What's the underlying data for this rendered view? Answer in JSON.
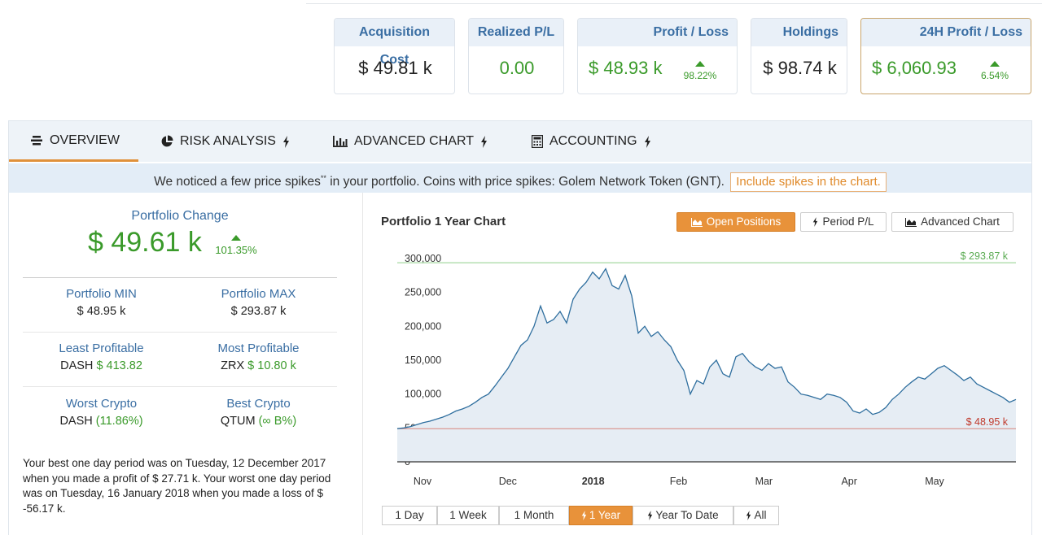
{
  "cards": [
    {
      "title": "Acquisition Cost",
      "value": "$ 49.81 k"
    },
    {
      "title": "Realized P/L",
      "value": "0.00"
    },
    {
      "title": "Profit / Loss",
      "value": "$ 48.93 k",
      "pct": "98.22%"
    },
    {
      "title": "Holdings",
      "value": "$ 98.74 k"
    },
    {
      "title": "24H Profit / Loss",
      "value": "$ 6,060.93",
      "pct": "6.54%"
    }
  ],
  "tabs": [
    {
      "label": "OVERVIEW",
      "icon": "stack-icon"
    },
    {
      "label": "RISK ANALYSIS",
      "icon": "pie-chart-icon"
    },
    {
      "label": "ADVANCED CHART",
      "icon": "bar-chart-icon"
    },
    {
      "label": "ACCOUNTING",
      "icon": "calculator-icon"
    }
  ],
  "notice": {
    "text_before": "We noticed a few price spikes",
    "sup": "**",
    "text_after": " in your portfolio. Coins with price spikes: Golem Network Token (GNT).",
    "button": "Include spikes in the chart."
  },
  "overview": {
    "change_title": "Portfolio Change",
    "change_value": "$ 49.61 k",
    "change_pct": "101.35%",
    "min_label": "Portfolio MIN",
    "min_value": "$ 48.95 k",
    "max_label": "Portfolio MAX",
    "max_value": "$ 293.87 k",
    "least_label": "Least Profitable",
    "least_coin": "DASH",
    "least_value": "$ 413.82",
    "most_label": "Most Profitable",
    "most_coin": "ZRX",
    "most_value": "$ 10.80 k",
    "worst_label": "Worst Crypto",
    "worst_coin": "DASH",
    "worst_value": "(11.86%)",
    "best_label": "Best Crypto",
    "best_coin": "QTUM",
    "best_value": "(∞ B%)",
    "summary": "Your best one day period was on Tuesday, 12 December 2017 when you made a profit of $ 27.71 k. Your worst one day period was on Tuesday, 16 January 2018 when you made a loss of $ -56.17 k."
  },
  "chart_header": {
    "title": "Portfolio 1 Year Chart",
    "btn_open": "Open Positions",
    "btn_period": "Period P/L",
    "btn_advanced": "Advanced Chart"
  },
  "ranges": [
    "1 Day",
    "1 Week",
    "1 Month",
    "1 Year",
    "Year To Date",
    "All"
  ],
  "colors": {
    "accent": "#e8923a",
    "line": "#2e6e9e",
    "green": "#3a9a2a",
    "red": "#c0392b"
  },
  "chart_data": {
    "type": "area",
    "title": "Portfolio 1 Year Chart",
    "x_ticks": [
      "Nov",
      "Dec",
      "2018",
      "Feb",
      "Mar",
      "Apr",
      "May"
    ],
    "y_ticks": [
      0,
      50000,
      100000,
      150000,
      200000,
      250000,
      300000
    ],
    "ylim": [
      0,
      300000
    ],
    "max_line": {
      "value": 293870,
      "label": "$ 293.87 k"
    },
    "min_line": {
      "value": 48950,
      "label": "$ 48.95 k"
    },
    "series": [
      {
        "x_unit": "weeks from start",
        "points": [
          [
            0,
            49000
          ],
          [
            0.5,
            50000
          ],
          [
            1,
            52000
          ],
          [
            1.5,
            55000
          ],
          [
            2,
            58000
          ],
          [
            2.5,
            60000
          ],
          [
            3,
            63000
          ],
          [
            3.5,
            66000
          ],
          [
            4,
            70000
          ],
          [
            4.5,
            75000
          ],
          [
            5,
            78000
          ],
          [
            5.5,
            82000
          ],
          [
            6,
            88000
          ],
          [
            6.5,
            95000
          ],
          [
            7,
            100000
          ],
          [
            7.5,
            112000
          ],
          [
            8,
            125000
          ],
          [
            8.5,
            138000
          ],
          [
            9,
            155000
          ],
          [
            9.5,
            172000
          ],
          [
            10,
            180000
          ],
          [
            10.5,
            200000
          ],
          [
            11,
            230000
          ],
          [
            11.5,
            205000
          ],
          [
            12,
            210000
          ],
          [
            12.5,
            222000
          ],
          [
            13,
            205000
          ],
          [
            13.5,
            240000
          ],
          [
            14,
            255000
          ],
          [
            14.5,
            265000
          ],
          [
            15,
            280000
          ],
          [
            15.5,
            270000
          ],
          [
            16,
            285000
          ],
          [
            16.5,
            260000
          ],
          [
            17,
            255000
          ],
          [
            17.5,
            275000
          ],
          [
            18,
            245000
          ],
          [
            18.5,
            190000
          ],
          [
            19,
            200000
          ],
          [
            19.5,
            185000
          ],
          [
            20,
            192000
          ],
          [
            20.5,
            180000
          ],
          [
            21,
            170000
          ],
          [
            21.5,
            150000
          ],
          [
            22,
            135000
          ],
          [
            22.5,
            100000
          ],
          [
            23,
            120000
          ],
          [
            23.5,
            115000
          ],
          [
            24,
            140000
          ],
          [
            24.5,
            150000
          ],
          [
            25,
            130000
          ],
          [
            25.5,
            125000
          ],
          [
            26,
            155000
          ],
          [
            26.5,
            160000
          ],
          [
            27,
            148000
          ],
          [
            27.5,
            140000
          ],
          [
            28,
            135000
          ],
          [
            28.5,
            145000
          ],
          [
            29,
            138000
          ],
          [
            29.5,
            140000
          ],
          [
            30,
            118000
          ],
          [
            30.5,
            110000
          ],
          [
            31,
            100000
          ],
          [
            31.5,
            98000
          ],
          [
            32,
            95000
          ],
          [
            32.5,
            92000
          ],
          [
            33,
            100000
          ],
          [
            33.5,
            98000
          ],
          [
            34,
            95000
          ],
          [
            34.5,
            88000
          ],
          [
            35,
            75000
          ],
          [
            35.5,
            72000
          ],
          [
            36,
            78000
          ],
          [
            36.5,
            70000
          ],
          [
            37,
            73000
          ],
          [
            37.5,
            80000
          ],
          [
            38,
            92000
          ],
          [
            38.5,
            100000
          ],
          [
            39,
            110000
          ],
          [
            39.5,
            118000
          ],
          [
            40,
            125000
          ],
          [
            40.5,
            122000
          ],
          [
            41,
            130000
          ],
          [
            41.5,
            138000
          ],
          [
            42,
            142000
          ],
          [
            42.5,
            135000
          ],
          [
            43,
            128000
          ],
          [
            43.5,
            120000
          ],
          [
            44,
            125000
          ],
          [
            44.5,
            115000
          ],
          [
            45,
            110000
          ],
          [
            45.5,
            105000
          ],
          [
            46,
            100000
          ],
          [
            46.5,
            95000
          ],
          [
            47,
            88000
          ],
          [
            47.5,
            92000
          ]
        ]
      }
    ]
  }
}
